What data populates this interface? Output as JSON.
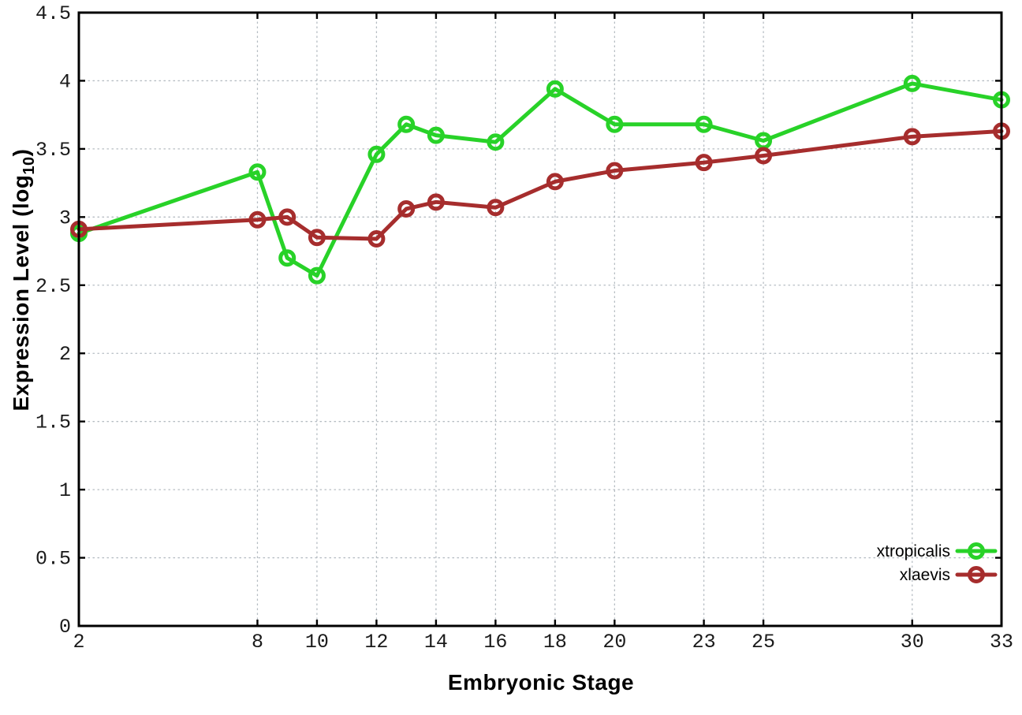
{
  "chart_data": {
    "type": "line",
    "title": "",
    "xlabel": "Embryonic Stage",
    "ylabel": "Expression Level (log10)",
    "ylabel_prefix": "Expression Level (log",
    "ylabel_sub": "10",
    "ylabel_suffix": ")",
    "xlim": [
      2,
      33
    ],
    "ylim": [
      0,
      4.5
    ],
    "grid": true,
    "marker_style": "open-circle",
    "legend_position": "bottom-right-inside",
    "x": [
      2,
      8,
      9,
      10,
      12,
      13,
      14,
      16,
      18,
      20,
      23,
      25,
      30,
      33
    ],
    "x_ticks": [
      2,
      8,
      10,
      12,
      14,
      16,
      18,
      20,
      23,
      25,
      30,
      33
    ],
    "x_tick_labels": [
      "2",
      "8",
      "10",
      "12",
      "14",
      "16",
      "18",
      "20",
      "23",
      "25",
      "30",
      "33"
    ],
    "y_ticks": [
      0,
      0.5,
      1,
      1.5,
      2,
      2.5,
      3,
      3.5,
      4,
      4.5
    ],
    "y_tick_labels": [
      "0",
      "0.5",
      "1",
      "1.5",
      "2",
      "2.5",
      "3",
      "3.5",
      "4",
      "4.5"
    ],
    "series": [
      {
        "name": "xtropicalis",
        "color": "#28d228",
        "values": [
          2.88,
          3.33,
          2.7,
          2.57,
          3.46,
          3.68,
          3.6,
          3.55,
          3.94,
          3.68,
          3.68,
          3.56,
          3.98,
          3.86
        ]
      },
      {
        "name": "xlaevis",
        "color": "#a62d2d",
        "values": [
          2.91,
          2.98,
          3.0,
          2.85,
          2.84,
          3.06,
          3.11,
          3.07,
          3.26,
          3.34,
          3.4,
          3.45,
          3.59,
          3.63
        ]
      }
    ],
    "colors": {
      "axis": "#000000",
      "grid": "#b5bcc2",
      "background": "#ffffff",
      "text": "#1a1a1a"
    }
  }
}
